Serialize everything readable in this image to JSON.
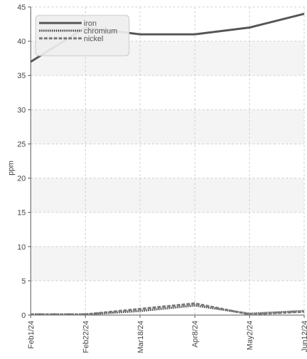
{
  "chart_data": {
    "type": "line",
    "categories": [
      "Feb1/24",
      "Feb22/24",
      "Mar18/24",
      "Apr8/24",
      "May2/24",
      "Jun12/24"
    ],
    "ylabel": "ppm",
    "ylim": [
      0,
      45
    ],
    "yticks": [
      0,
      5,
      10,
      15,
      20,
      25,
      30,
      35,
      40,
      45
    ],
    "grid": true,
    "legend_position": "top-left",
    "series": [
      {
        "name": "iron",
        "values": [
          37,
          42,
          41,
          41,
          42,
          44
        ],
        "color": "#555555",
        "style": "solid"
      },
      {
        "name": "chromium",
        "values": [
          0.1,
          0.1,
          0.6,
          1.4,
          0.2,
          0.6
        ],
        "color": "#666666",
        "style": "dotted"
      },
      {
        "name": "nickel",
        "values": [
          0.1,
          0.1,
          0.9,
          1.7,
          0.1,
          0.5
        ],
        "color": "#777777",
        "style": "dashed"
      }
    ]
  }
}
